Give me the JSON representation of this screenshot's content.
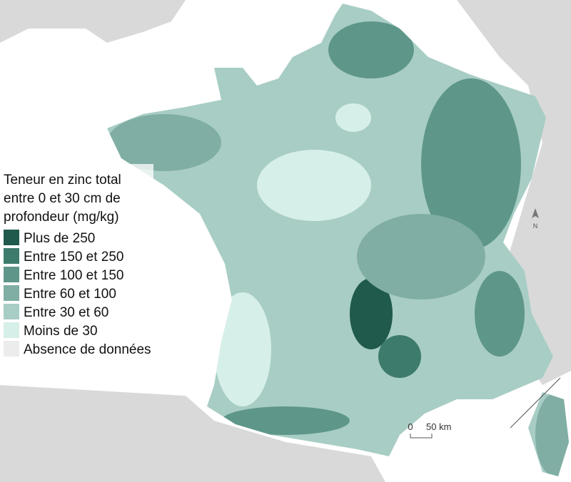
{
  "legend": {
    "title_lines": [
      "Teneur en zinc total",
      "entre 0 et 30 cm de",
      "profondeur (mg/kg)"
    ],
    "items": [
      {
        "label": "Plus de 250",
        "color": "#1f5a4d"
      },
      {
        "label": "Entre 150 et 250",
        "color": "#3d7b6d"
      },
      {
        "label": "Entre 100 et 150",
        "color": "#5e968a"
      },
      {
        "label": "Entre 60 et 100",
        "color": "#80aea4"
      },
      {
        "label": "Entre 30 et 60",
        "color": "#a8cdc4"
      },
      {
        "label": "Moins de 30",
        "color": "#d6efe9"
      },
      {
        "label": "Absence de données",
        "color": "#ececec"
      }
    ]
  },
  "scale_bar": {
    "start_label": "0",
    "end_label": "50 km"
  },
  "north_arrow": {
    "label": "N"
  }
}
